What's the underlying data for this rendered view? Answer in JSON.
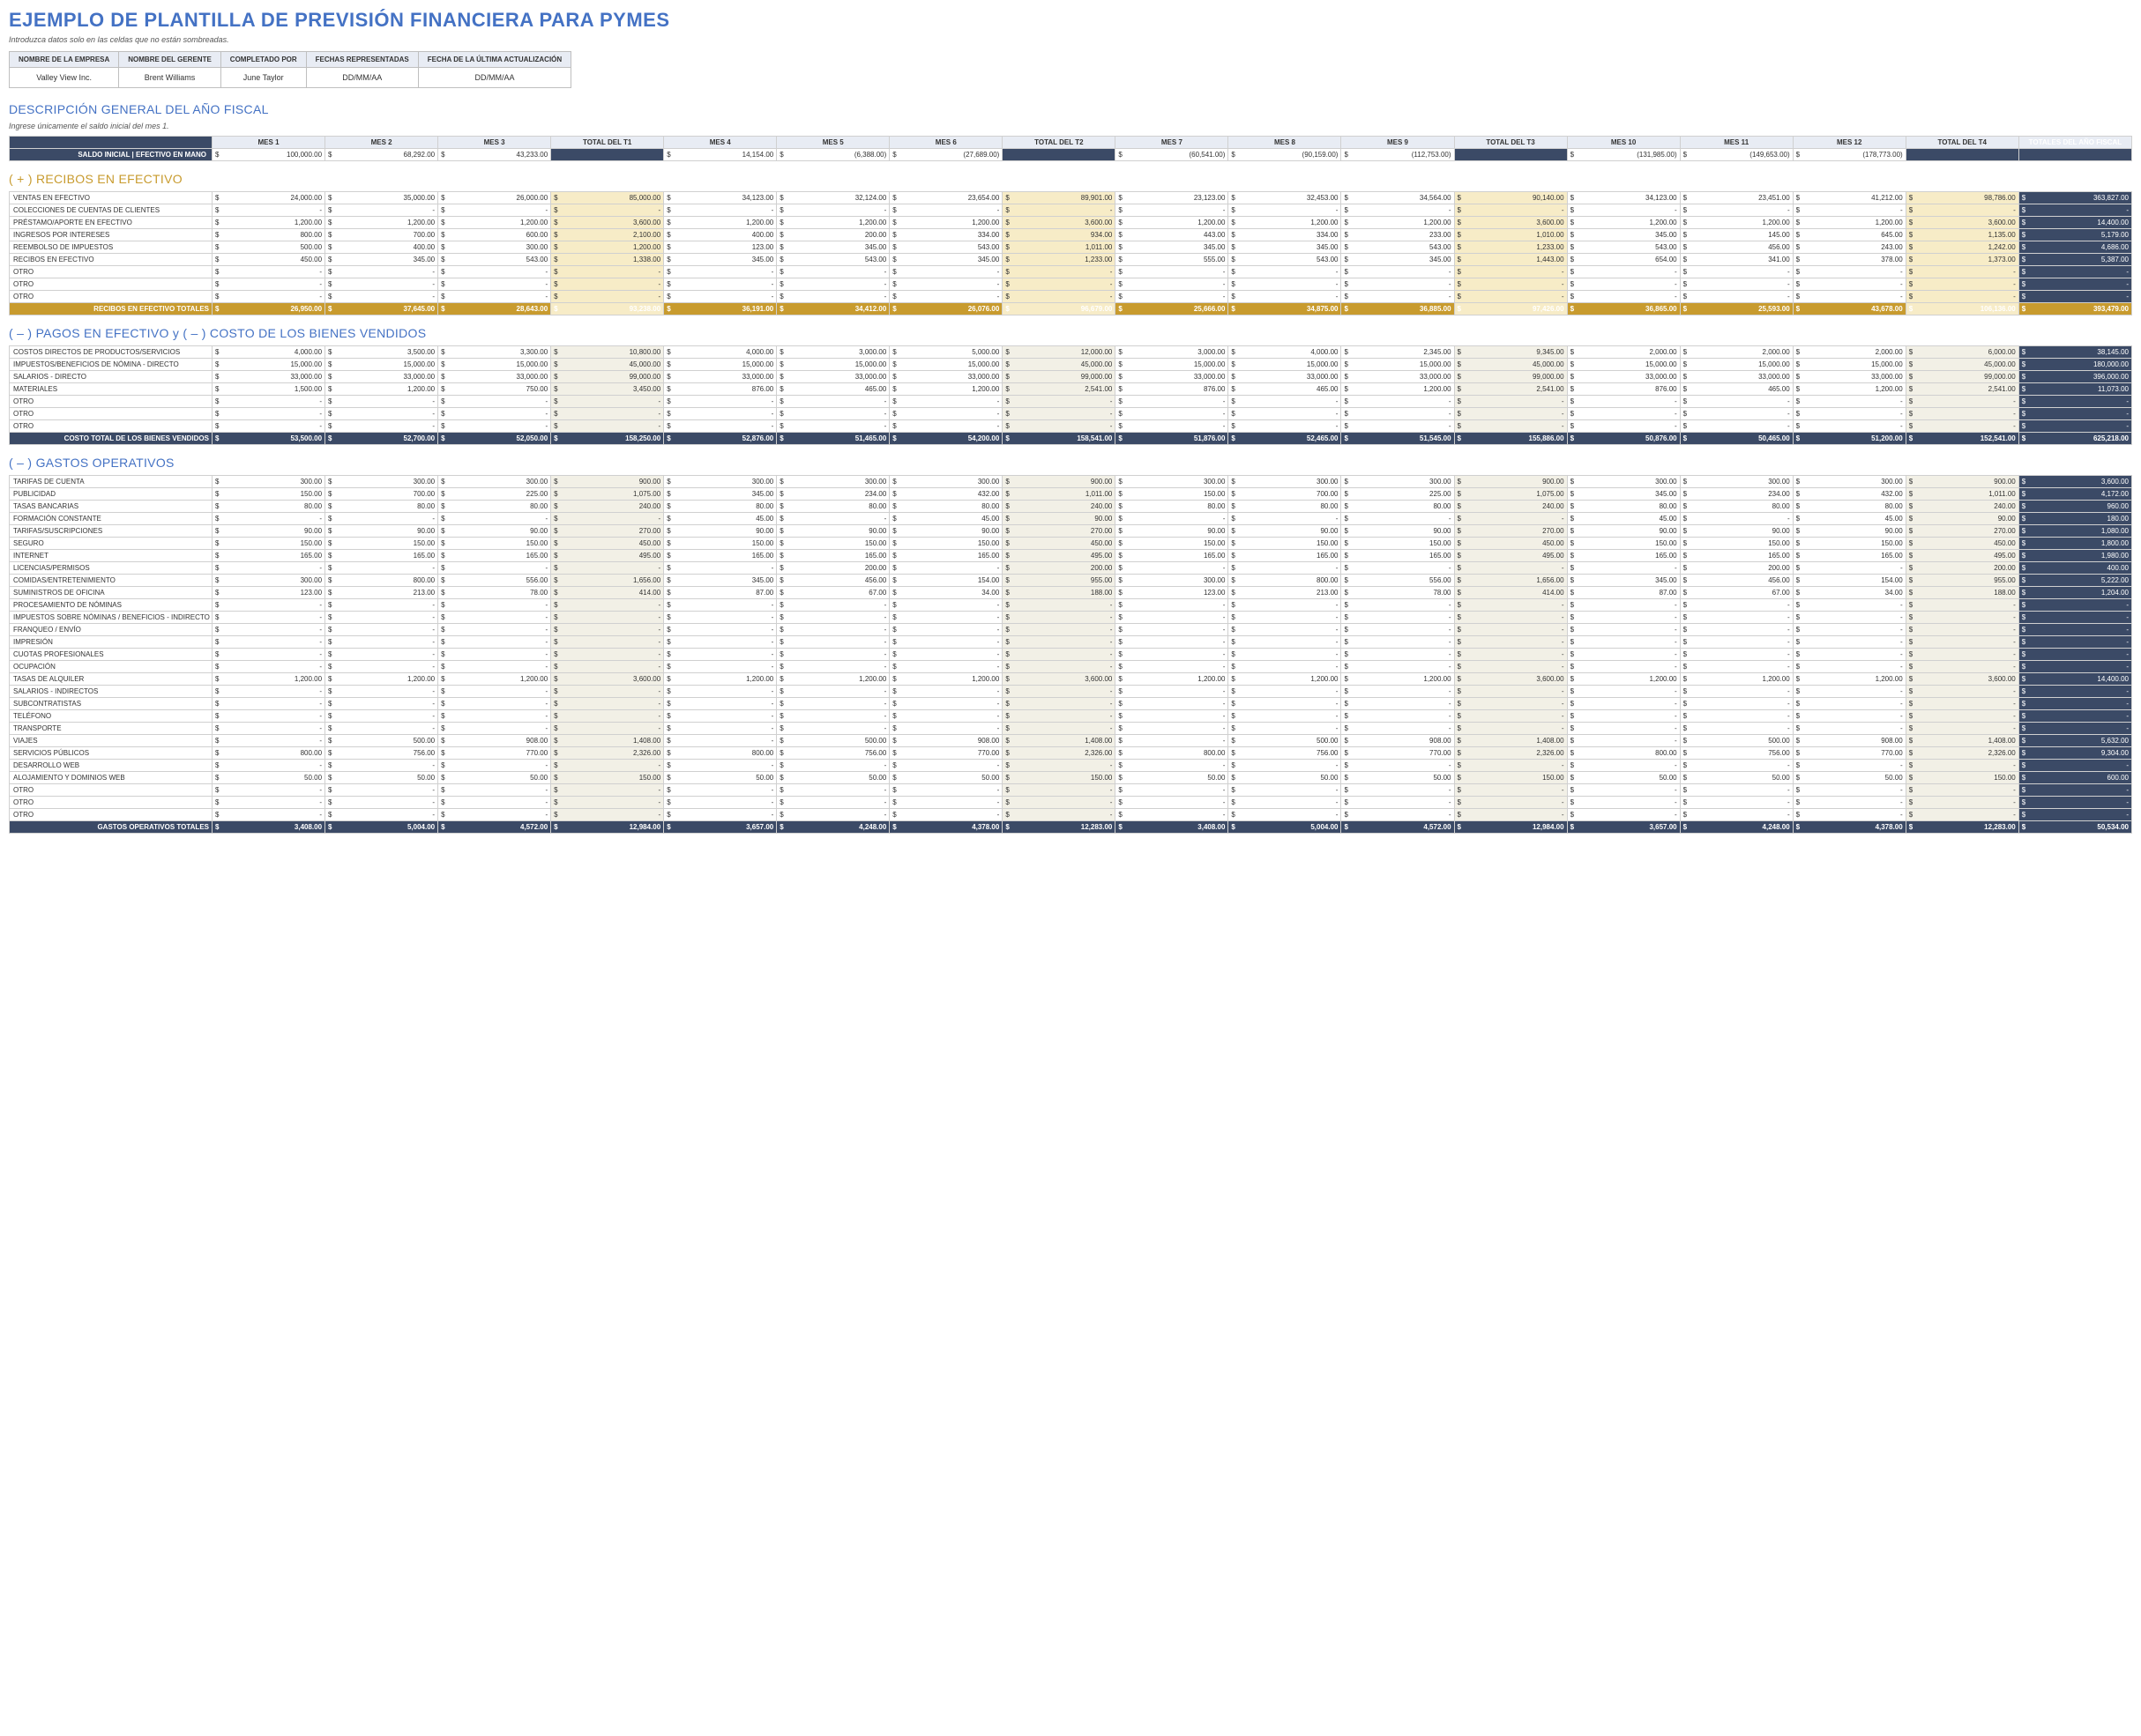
{
  "title": "EJEMPLO DE PLANTILLA DE PREVISIÓN FINANCIERA PARA PYMES",
  "subtitle": "Introduzca datos solo en las celdas que no están sombreadas.",
  "meta": {
    "h": [
      "NOMBRE DE LA EMPRESA",
      "NOMBRE DEL GERENTE",
      "COMPLETADO POR",
      "FECHAS REPRESENTADAS",
      "FECHA DE LA ÚLTIMA ACTUALIZACIÓN"
    ],
    "v": [
      "Valley View Inc.",
      "Brent Williams",
      "June Taylor",
      "DD/MM/AA",
      "DD/MM/AA"
    ]
  },
  "fiscal": {
    "title": "DESCRIPCIÓN GENERAL DEL AÑO FISCAL",
    "sub": "Ingrese únicamente el saldo inicial del mes 1.",
    "cols": [
      "MES 1",
      "MES 2",
      "MES 3",
      "TOTAL DEL T1",
      "MES 4",
      "MES 5",
      "MES 6",
      "TOTAL DEL T2",
      "MES 7",
      "MES 8",
      "MES 9",
      "TOTAL DEL T3",
      "MES 10",
      "MES 11",
      "MES 12",
      "TOTAL DEL T4",
      "TOTALES DEL AÑO FISCAL"
    ],
    "saldo_label": "SALDO INICIAL | EFECTIVO EN MANO",
    "saldo": [
      "100,000.00",
      "68,292.00",
      "43,233.00",
      "",
      "14,154.00",
      "(6,388.00)",
      "(27,689.00)",
      "",
      "(60,541.00)",
      "(90,159.00)",
      "(112,753.00)",
      "",
      "(131,985.00)",
      "(149,653.00)",
      "(178,773.00)",
      "",
      ""
    ]
  },
  "receipts": {
    "title": "( + ) RECIBOS EN EFECTIVO",
    "rows": [
      {
        "l": "VENTAS EN EFECTIVO",
        "v": [
          "24,000.00",
          "35,000.00",
          "26,000.00",
          "85,000.00",
          "34,123.00",
          "32,124.00",
          "23,654.00",
          "89,901.00",
          "23,123.00",
          "32,453.00",
          "34,564.00",
          "90,140.00",
          "34,123.00",
          "23,451.00",
          "41,212.00",
          "98,786.00",
          "363,827.00"
        ]
      },
      {
        "l": "COLECCIONES DE CUENTAS DE CLIENTES",
        "v": [
          "-",
          "-",
          "-",
          "-",
          "-",
          "-",
          "-",
          "-",
          "-",
          "-",
          "-",
          "-",
          "-",
          "-",
          "-",
          "-",
          "-"
        ]
      },
      {
        "l": "PRÉSTAMO/APORTE EN EFECTIVO",
        "v": [
          "1,200.00",
          "1,200.00",
          "1,200.00",
          "3,600.00",
          "1,200.00",
          "1,200.00",
          "1,200.00",
          "3,600.00",
          "1,200.00",
          "1,200.00",
          "1,200.00",
          "3,600.00",
          "1,200.00",
          "1,200.00",
          "1,200.00",
          "3,600.00",
          "14,400.00"
        ]
      },
      {
        "l": "INGRESOS POR INTERESES",
        "v": [
          "800.00",
          "700.00",
          "600.00",
          "2,100.00",
          "400.00",
          "200.00",
          "334.00",
          "934.00",
          "443.00",
          "334.00",
          "233.00",
          "1,010.00",
          "345.00",
          "145.00",
          "645.00",
          "1,135.00",
          "5,179.00"
        ]
      },
      {
        "l": "REEMBOLSO DE IMPUESTOS",
        "v": [
          "500.00",
          "400.00",
          "300.00",
          "1,200.00",
          "123.00",
          "345.00",
          "543.00",
          "1,011.00",
          "345.00",
          "345.00",
          "543.00",
          "1,233.00",
          "543.00",
          "456.00",
          "243.00",
          "1,242.00",
          "4,686.00"
        ]
      },
      {
        "l": "RECIBOS EN EFECTIVO",
        "v": [
          "450.00",
          "345.00",
          "543.00",
          "1,338.00",
          "345.00",
          "543.00",
          "345.00",
          "1,233.00",
          "555.00",
          "543.00",
          "345.00",
          "1,443.00",
          "654.00",
          "341.00",
          "378.00",
          "1,373.00",
          "5,387.00"
        ]
      },
      {
        "l": "OTRO",
        "v": [
          "-",
          "-",
          "-",
          "-",
          "-",
          "-",
          "-",
          "-",
          "-",
          "-",
          "-",
          "-",
          "-",
          "-",
          "-",
          "-",
          "-"
        ]
      },
      {
        "l": "OTRO",
        "v": [
          "-",
          "-",
          "-",
          "-",
          "-",
          "-",
          "-",
          "-",
          "-",
          "-",
          "-",
          "-",
          "-",
          "-",
          "-",
          "-",
          "-"
        ]
      },
      {
        "l": "OTRO",
        "v": [
          "-",
          "-",
          "-",
          "-",
          "-",
          "-",
          "-",
          "-",
          "-",
          "-",
          "-",
          "-",
          "-",
          "-",
          "-",
          "-",
          "-"
        ]
      }
    ],
    "total_label": "RECIBOS EN EFECTIVO TOTALES",
    "total": [
      "26,950.00",
      "37,645.00",
      "28,643.00",
      "93,238.00",
      "36,191.00",
      "34,412.00",
      "26,076.00",
      "96,679.00",
      "25,666.00",
      "34,875.00",
      "36,885.00",
      "97,426.00",
      "36,865.00",
      "25,593.00",
      "43,678.00",
      "106,136.00",
      "393,479.00"
    ]
  },
  "cogs": {
    "title": "( – ) PAGOS EN EFECTIVO y ( – ) COSTO DE LOS BIENES VENDIDOS",
    "rows": [
      {
        "l": "COSTOS DIRECTOS DE PRODUCTOS/SERVICIOS",
        "v": [
          "4,000.00",
          "3,500.00",
          "3,300.00",
          "10,800.00",
          "4,000.00",
          "3,000.00",
          "5,000.00",
          "12,000.00",
          "3,000.00",
          "4,000.00",
          "2,345.00",
          "9,345.00",
          "2,000.00",
          "2,000.00",
          "2,000.00",
          "6,000.00",
          "38,145.00"
        ]
      },
      {
        "l": "IMPUESTOS/BENEFICIOS DE NÓMINA - DIRECTO",
        "v": [
          "15,000.00",
          "15,000.00",
          "15,000.00",
          "45,000.00",
          "15,000.00",
          "15,000.00",
          "15,000.00",
          "45,000.00",
          "15,000.00",
          "15,000.00",
          "15,000.00",
          "45,000.00",
          "15,000.00",
          "15,000.00",
          "15,000.00",
          "45,000.00",
          "180,000.00"
        ]
      },
      {
        "l": "SALARIOS - DIRECTO",
        "v": [
          "33,000.00",
          "33,000.00",
          "33,000.00",
          "99,000.00",
          "33,000.00",
          "33,000.00",
          "33,000.00",
          "99,000.00",
          "33,000.00",
          "33,000.00",
          "33,000.00",
          "99,000.00",
          "33,000.00",
          "33,000.00",
          "33,000.00",
          "99,000.00",
          "396,000.00"
        ]
      },
      {
        "l": "MATERIALES",
        "v": [
          "1,500.00",
          "1,200.00",
          "750.00",
          "3,450.00",
          "876.00",
          "465.00",
          "1,200.00",
          "2,541.00",
          "876.00",
          "465.00",
          "1,200.00",
          "2,541.00",
          "876.00",
          "465.00",
          "1,200.00",
          "2,541.00",
          "11,073.00"
        ]
      },
      {
        "l": "OTRO",
        "v": [
          "-",
          "-",
          "-",
          "-",
          "-",
          "-",
          "-",
          "-",
          "-",
          "-",
          "-",
          "-",
          "-",
          "-",
          "-",
          "-",
          "-"
        ]
      },
      {
        "l": "OTRO",
        "v": [
          "-",
          "-",
          "-",
          "-",
          "-",
          "-",
          "-",
          "-",
          "-",
          "-",
          "-",
          "-",
          "-",
          "-",
          "-",
          "-",
          "-"
        ]
      },
      {
        "l": "OTRO",
        "v": [
          "-",
          "-",
          "-",
          "-",
          "-",
          "-",
          "-",
          "-",
          "-",
          "-",
          "-",
          "-",
          "-",
          "-",
          "-",
          "-",
          "-"
        ]
      }
    ],
    "total_label": "COSTO TOTAL DE LOS BIENES VENDIDOS",
    "total": [
      "53,500.00",
      "52,700.00",
      "52,050.00",
      "158,250.00",
      "52,876.00",
      "51,465.00",
      "54,200.00",
      "158,541.00",
      "51,876.00",
      "52,465.00",
      "51,545.00",
      "155,886.00",
      "50,876.00",
      "50,465.00",
      "51,200.00",
      "152,541.00",
      "625,218.00"
    ]
  },
  "opex": {
    "title": "( – ) GASTOS OPERATIVOS",
    "rows": [
      {
        "l": "TARIFAS DE CUENTA",
        "v": [
          "300.00",
          "300.00",
          "300.00",
          "900.00",
          "300.00",
          "300.00",
          "300.00",
          "900.00",
          "300.00",
          "300.00",
          "300.00",
          "900.00",
          "300.00",
          "300.00",
          "300.00",
          "900.00",
          "3,600.00"
        ]
      },
      {
        "l": "PUBLICIDAD",
        "v": [
          "150.00",
          "700.00",
          "225.00",
          "1,075.00",
          "345.00",
          "234.00",
          "432.00",
          "1,011.00",
          "150.00",
          "700.00",
          "225.00",
          "1,075.00",
          "345.00",
          "234.00",
          "432.00",
          "1,011.00",
          "4,172.00"
        ]
      },
      {
        "l": "TASAS BANCARIAS",
        "v": [
          "80.00",
          "80.00",
          "80.00",
          "240.00",
          "80.00",
          "80.00",
          "80.00",
          "240.00",
          "80.00",
          "80.00",
          "80.00",
          "240.00",
          "80.00",
          "80.00",
          "80.00",
          "240.00",
          "960.00"
        ]
      },
      {
        "l": "FORMACIÓN CONSTANTE",
        "v": [
          "-",
          "-",
          "-",
          "-",
          "45.00",
          "-",
          "45.00",
          "90.00",
          "-",
          "-",
          "-",
          "-",
          "45.00",
          "-",
          "45.00",
          "90.00",
          "180.00"
        ]
      },
      {
        "l": "TARIFAS/SUSCRIPCIONES",
        "v": [
          "90.00",
          "90.00",
          "90.00",
          "270.00",
          "90.00",
          "90.00",
          "90.00",
          "270.00",
          "90.00",
          "90.00",
          "90.00",
          "270.00",
          "90.00",
          "90.00",
          "90.00",
          "270.00",
          "1,080.00"
        ]
      },
      {
        "l": "SEGURO",
        "v": [
          "150.00",
          "150.00",
          "150.00",
          "450.00",
          "150.00",
          "150.00",
          "150.00",
          "450.00",
          "150.00",
          "150.00",
          "150.00",
          "450.00",
          "150.00",
          "150.00",
          "150.00",
          "450.00",
          "1,800.00"
        ]
      },
      {
        "l": "INTERNET",
        "v": [
          "165.00",
          "165.00",
          "165.00",
          "495.00",
          "165.00",
          "165.00",
          "165.00",
          "495.00",
          "165.00",
          "165.00",
          "165.00",
          "495.00",
          "165.00",
          "165.00",
          "165.00",
          "495.00",
          "1,980.00"
        ]
      },
      {
        "l": "LICENCIAS/PERMISOS",
        "v": [
          "-",
          "-",
          "-",
          "-",
          "-",
          "200.00",
          "-",
          "200.00",
          "-",
          "-",
          "-",
          "-",
          "-",
          "200.00",
          "-",
          "200.00",
          "400.00"
        ]
      },
      {
        "l": "COMIDAS/ENTRETENIMIENTO",
        "v": [
          "300.00",
          "800.00",
          "556.00",
          "1,656.00",
          "345.00",
          "456.00",
          "154.00",
          "955.00",
          "300.00",
          "800.00",
          "556.00",
          "1,656.00",
          "345.00",
          "456.00",
          "154.00",
          "955.00",
          "5,222.00"
        ]
      },
      {
        "l": "SUMINISTROS DE OFICINA",
        "v": [
          "123.00",
          "213.00",
          "78.00",
          "414.00",
          "87.00",
          "67.00",
          "34.00",
          "188.00",
          "123.00",
          "213.00",
          "78.00",
          "414.00",
          "87.00",
          "67.00",
          "34.00",
          "188.00",
          "1,204.00"
        ]
      },
      {
        "l": "PROCESAMIENTO DE NÓMINAS",
        "v": [
          "-",
          "-",
          "-",
          "-",
          "-",
          "-",
          "-",
          "-",
          "-",
          "-",
          "-",
          "-",
          "-",
          "-",
          "-",
          "-",
          "-"
        ]
      },
      {
        "l": "IMPUESTOS SOBRE NÓMINAS / BENEFICIOS - INDIRECTO",
        "v": [
          "-",
          "-",
          "-",
          "-",
          "-",
          "-",
          "-",
          "-",
          "-",
          "-",
          "-",
          "-",
          "-",
          "-",
          "-",
          "-",
          "-"
        ]
      },
      {
        "l": "FRANQUEO / ENVÍO",
        "v": [
          "-",
          "-",
          "-",
          "-",
          "-",
          "-",
          "-",
          "-",
          "-",
          "-",
          "-",
          "-",
          "-",
          "-",
          "-",
          "-",
          "-"
        ]
      },
      {
        "l": "IMPRESIÓN",
        "v": [
          "-",
          "-",
          "-",
          "-",
          "-",
          "-",
          "-",
          "-",
          "-",
          "-",
          "-",
          "-",
          "-",
          "-",
          "-",
          "-",
          "-"
        ]
      },
      {
        "l": "CUOTAS PROFESIONALES",
        "v": [
          "-",
          "-",
          "-",
          "-",
          "-",
          "-",
          "-",
          "-",
          "-",
          "-",
          "-",
          "-",
          "-",
          "-",
          "-",
          "-",
          "-"
        ]
      },
      {
        "l": "OCUPACIÓN",
        "v": [
          "-",
          "-",
          "-",
          "-",
          "-",
          "-",
          "-",
          "-",
          "-",
          "-",
          "-",
          "-",
          "-",
          "-",
          "-",
          "-",
          "-"
        ]
      },
      {
        "l": "TASAS DE ALQUILER",
        "v": [
          "1,200.00",
          "1,200.00",
          "1,200.00",
          "3,600.00",
          "1,200.00",
          "1,200.00",
          "1,200.00",
          "3,600.00",
          "1,200.00",
          "1,200.00",
          "1,200.00",
          "3,600.00",
          "1,200.00",
          "1,200.00",
          "1,200.00",
          "3,600.00",
          "14,400.00"
        ]
      },
      {
        "l": "SALARIOS - INDIRECTOS",
        "v": [
          "-",
          "-",
          "-",
          "-",
          "-",
          "-",
          "-",
          "-",
          "-",
          "-",
          "-",
          "-",
          "-",
          "-",
          "-",
          "-",
          "-"
        ]
      },
      {
        "l": "SUBCONTRATISTAS",
        "v": [
          "-",
          "-",
          "-",
          "-",
          "-",
          "-",
          "-",
          "-",
          "-",
          "-",
          "-",
          "-",
          "-",
          "-",
          "-",
          "-",
          "-"
        ]
      },
      {
        "l": "TELÉFONO",
        "v": [
          "-",
          "-",
          "-",
          "-",
          "-",
          "-",
          "-",
          "-",
          "-",
          "-",
          "-",
          "-",
          "-",
          "-",
          "-",
          "-",
          "-"
        ]
      },
      {
        "l": "TRANSPORTE",
        "v": [
          "-",
          "-",
          "-",
          "-",
          "-",
          "-",
          "-",
          "-",
          "-",
          "-",
          "-",
          "-",
          "-",
          "-",
          "-",
          "-",
          "-"
        ]
      },
      {
        "l": "VIAJES",
        "v": [
          "-",
          "500.00",
          "908.00",
          "1,408.00",
          "-",
          "500.00",
          "908.00",
          "1,408.00",
          "-",
          "500.00",
          "908.00",
          "1,408.00",
          "-",
          "500.00",
          "908.00",
          "1,408.00",
          "5,632.00"
        ]
      },
      {
        "l": "SERVICIOS PÚBLICOS",
        "v": [
          "800.00",
          "756.00",
          "770.00",
          "2,326.00",
          "800.00",
          "756.00",
          "770.00",
          "2,326.00",
          "800.00",
          "756.00",
          "770.00",
          "2,326.00",
          "800.00",
          "756.00",
          "770.00",
          "2,326.00",
          "9,304.00"
        ]
      },
      {
        "l": "DESARROLLO WEB",
        "v": [
          "-",
          "-",
          "-",
          "-",
          "-",
          "-",
          "-",
          "-",
          "-",
          "-",
          "-",
          "-",
          "-",
          "-",
          "-",
          "-",
          "-"
        ]
      },
      {
        "l": "ALOJAMIENTO Y DOMINIOS WEB",
        "v": [
          "50.00",
          "50.00",
          "50.00",
          "150.00",
          "50.00",
          "50.00",
          "50.00",
          "150.00",
          "50.00",
          "50.00",
          "50.00",
          "150.00",
          "50.00",
          "50.00",
          "50.00",
          "150.00",
          "600.00"
        ]
      },
      {
        "l": "OTRO",
        "v": [
          "-",
          "-",
          "-",
          "-",
          "-",
          "-",
          "-",
          "-",
          "-",
          "-",
          "-",
          "-",
          "-",
          "-",
          "-",
          "-",
          "-"
        ]
      },
      {
        "l": "OTRO",
        "v": [
          "-",
          "-",
          "-",
          "-",
          "-",
          "-",
          "-",
          "-",
          "-",
          "-",
          "-",
          "-",
          "-",
          "-",
          "-",
          "-",
          "-"
        ]
      },
      {
        "l": "OTRO",
        "v": [
          "-",
          "-",
          "-",
          "-",
          "-",
          "-",
          "-",
          "-",
          "-",
          "-",
          "-",
          "-",
          "-",
          "-",
          "-",
          "-",
          "-"
        ]
      }
    ],
    "total_label": "GASTOS OPERATIVOS TOTALES",
    "total": [
      "3,408.00",
      "5,004.00",
      "4,572.00",
      "12,984.00",
      "3,657.00",
      "4,248.00",
      "4,378.00",
      "12,283.00",
      "3,408.00",
      "5,004.00",
      "4,572.00",
      "12,984.00",
      "3,657.00",
      "4,248.00",
      "4,378.00",
      "12,283.00",
      "50,534.00"
    ]
  },
  "qtr_idx": [
    3,
    7,
    11,
    15
  ],
  "fyt_idx": 16
}
